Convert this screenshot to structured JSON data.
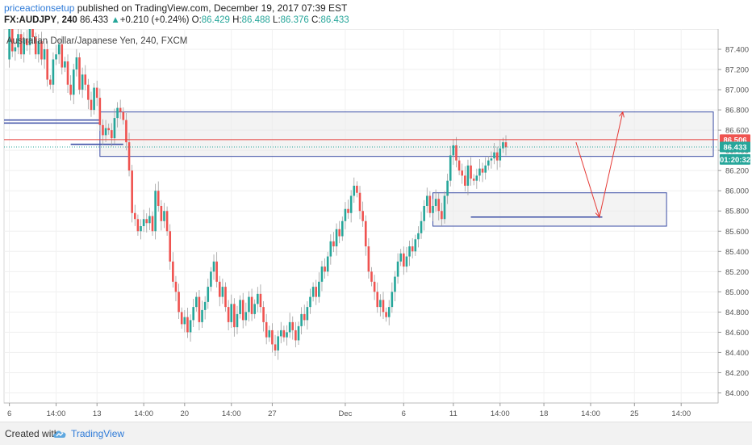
{
  "header": {
    "author": "priceactionsetup",
    "published_text": " published on TradingView.com, December 19, 2017 07:39 EST",
    "symbol": "FX:AUDJPY",
    "interval": "240",
    "last": "86.433",
    "change_arrow": "▲",
    "change": "+0.210 (+0.24%)",
    "o_label": "O:",
    "o_value": "86.429",
    "h_label": "H:",
    "h_value": "86.488",
    "l_label": "L:",
    "l_value": "86.376",
    "c_label": "C:",
    "c_value": "86.433"
  },
  "footer": {
    "created_with": "Created with",
    "brand": "TradingView",
    "logo_icon": "tradingview-cloud-icon"
  },
  "colors": {
    "up": "#26a69a",
    "down": "#ef5350",
    "wick": "#9e9e9e",
    "box_border": "#3b4ea5",
    "box_fill": "#e9e9e9",
    "resistance_line": "#e53935",
    "price_tag_red": "#ef5350",
    "price_tag_green": "#26a69a",
    "arrow": "#e53935"
  },
  "chart_data": {
    "type": "candlestick",
    "subtitle": "Australian Dollar/Japanese Yen, 240, FXCM",
    "y_axis": {
      "min": 83.9,
      "max": 87.6,
      "ticks": [
        "84.000",
        "84.200",
        "84.400",
        "84.600",
        "84.800",
        "85.000",
        "85.200",
        "85.400",
        "85.600",
        "85.800",
        "86.000",
        "86.200",
        "86.400",
        "86.600",
        "86.800",
        "87.000",
        "87.200",
        "87.400"
      ]
    },
    "x_axis": {
      "ticks": [
        {
          "label": "6",
          "bar": 1
        },
        {
          "label": "14:00",
          "bar": 17
        },
        {
          "label": "13",
          "bar": 31
        },
        {
          "label": "14:00",
          "bar": 47
        },
        {
          "label": "20",
          "bar": 61
        },
        {
          "label": "14:00",
          "bar": 77
        },
        {
          "label": "27",
          "bar": 91
        },
        {
          "label": "Dec",
          "bar": 116
        },
        {
          "label": "6",
          "bar": 136
        },
        {
          "label": "11",
          "bar": 153
        },
        {
          "label": "14:00",
          "bar": 169
        },
        {
          "label": "18",
          "bar": 184
        },
        {
          "label": "14:00",
          "bar": 200
        },
        {
          "label": "25",
          "bar": 215
        },
        {
          "label": "14:00",
          "bar": 231
        }
      ]
    },
    "price_labels": [
      {
        "value": 86.506,
        "text": "86.506",
        "color": "#ef5350"
      },
      {
        "value": 86.433,
        "text": "86.433",
        "color": "#26a69a"
      },
      {
        "value": 86.31,
        "text": "01:20:32",
        "color": "#26a69a"
      }
    ],
    "resistance_line": 86.506,
    "last_price": 86.433,
    "zones": [
      {
        "name": "resistance-zone",
        "x0": 32,
        "x1": 242,
        "y0": 86.34,
        "y1": 86.78
      },
      {
        "name": "support-zone",
        "x0": 146,
        "x1": 226,
        "y0": 85.65,
        "y1": 85.98
      }
    ],
    "levels": [
      {
        "name": "left-level-1",
        "x0": 0,
        "x1": 32,
        "y": 86.7
      },
      {
        "name": "left-level-2",
        "x0": 0,
        "x1": 32,
        "y": 86.67
      },
      {
        "name": "mid-level",
        "x0": 22,
        "x1": 40,
        "y": 86.46
      },
      {
        "name": "support-level",
        "x0": 159,
        "x1": 204,
        "y": 85.74
      }
    ],
    "projection_path": [
      [
        195,
        86.48
      ],
      [
        203,
        85.74
      ],
      [
        211,
        86.78
      ]
    ],
    "ohlc_points": [
      [
        0,
        87.3
      ],
      [
        1,
        87.6
      ],
      [
        2,
        87.38
      ],
      [
        3,
        87.42
      ],
      [
        4,
        87.55
      ],
      [
        5,
        87.35
      ],
      [
        6,
        87.5
      ],
      [
        7,
        87.44
      ],
      [
        8,
        87.62
      ],
      [
        9,
        87.52
      ],
      [
        10,
        87.35
      ],
      [
        11,
        87.48
      ],
      [
        12,
        87.3
      ],
      [
        13,
        87.4
      ],
      [
        14,
        87.1
      ],
      [
        15,
        87.05
      ],
      [
        16,
        87.3
      ],
      [
        17,
        87.35
      ],
      [
        18,
        87.45
      ],
      [
        19,
        87.22
      ],
      [
        20,
        87.28
      ],
      [
        21,
        87.05
      ],
      [
        22,
        86.95
      ],
      [
        23,
        87.2
      ],
      [
        24,
        87.32
      ],
      [
        25,
        87.0
      ],
      [
        26,
        87.15
      ],
      [
        27,
        87.05
      ],
      [
        28,
        86.9
      ],
      [
        29,
        86.8
      ],
      [
        30,
        87.02
      ],
      [
        31,
        86.92
      ],
      [
        32,
        86.65
      ],
      [
        33,
        86.55
      ],
      [
        34,
        86.62
      ],
      [
        35,
        86.6
      ],
      [
        36,
        86.52
      ],
      [
        37,
        86.72
      ],
      [
        38,
        86.82
      ],
      [
        39,
        86.78
      ],
      [
        40,
        86.7
      ],
      [
        41,
        86.48
      ],
      [
        42,
        86.2
      ],
      [
        43,
        85.78
      ],
      [
        44,
        85.72
      ],
      [
        45,
        85.6
      ],
      [
        46,
        85.65
      ],
      [
        47,
        85.72
      ],
      [
        48,
        85.68
      ],
      [
        49,
        85.75
      ],
      [
        50,
        85.6
      ],
      [
        51,
        86.0
      ],
      [
        52,
        85.85
      ],
      [
        53,
        85.7
      ],
      [
        54,
        85.8
      ],
      [
        55,
        85.6
      ],
      [
        56,
        85.3
      ],
      [
        57,
        85.1
      ],
      [
        58,
        85.0
      ],
      [
        59,
        84.8
      ],
      [
        60,
        84.68
      ],
      [
        61,
        84.75
      ],
      [
        62,
        84.6
      ],
      [
        63,
        84.72
      ],
      [
        64,
        84.85
      ],
      [
        65,
        84.95
      ],
      [
        66,
        84.7
      ],
      [
        67,
        84.82
      ],
      [
        68,
        84.9
      ],
      [
        69,
        85.05
      ],
      [
        70,
        85.2
      ],
      [
        71,
        85.3
      ],
      [
        72,
        85.1
      ],
      [
        73,
        84.95
      ],
      [
        74,
        85.05
      ],
      [
        75,
        84.85
      ],
      [
        76,
        84.7
      ],
      [
        77,
        84.88
      ],
      [
        78,
        84.65
      ],
      [
        79,
        84.78
      ],
      [
        80,
        84.92
      ],
      [
        81,
        84.72
      ],
      [
        82,
        84.8
      ],
      [
        83,
        84.95
      ],
      [
        84,
        84.78
      ],
      [
        85,
        84.88
      ],
      [
        86,
        84.98
      ],
      [
        87,
        84.85
      ],
      [
        88,
        84.7
      ],
      [
        89,
        84.55
      ],
      [
        90,
        84.62
      ],
      [
        91,
        84.48
      ],
      [
        92,
        84.42
      ],
      [
        93,
        84.56
      ],
      [
        94,
        84.62
      ],
      [
        95,
        84.55
      ],
      [
        96,
        84.6
      ],
      [
        97,
        84.7
      ],
      [
        98,
        84.62
      ],
      [
        99,
        84.52
      ],
      [
        100,
        84.66
      ],
      [
        101,
        84.78
      ],
      [
        102,
        84.72
      ],
      [
        103,
        84.85
      ],
      [
        104,
        84.95
      ],
      [
        105,
        85.05
      ],
      [
        106,
        84.95
      ],
      [
        107,
        85.1
      ],
      [
        108,
        85.25
      ],
      [
        109,
        85.2
      ],
      [
        110,
        85.35
      ],
      [
        111,
        85.5
      ],
      [
        112,
        85.45
      ],
      [
        113,
        85.62
      ],
      [
        114,
        85.55
      ],
      [
        115,
        85.7
      ],
      [
        116,
        85.82
      ],
      [
        117,
        85.78
      ],
      [
        118,
        85.95
      ],
      [
        119,
        86.05
      ],
      [
        120,
        85.98
      ],
      [
        121,
        85.8
      ],
      [
        122,
        85.7
      ],
      [
        123,
        85.45
      ],
      [
        124,
        85.2
      ],
      [
        125,
        85.1
      ],
      [
        126,
        85.0
      ],
      [
        127,
        84.85
      ],
      [
        128,
        84.92
      ],
      [
        129,
        84.8
      ],
      [
        130,
        84.75
      ],
      [
        131,
        84.85
      ],
      [
        132,
        85.0
      ],
      [
        133,
        85.15
      ],
      [
        134,
        85.3
      ],
      [
        135,
        85.38
      ],
      [
        136,
        85.25
      ],
      [
        137,
        85.35
      ],
      [
        138,
        85.45
      ],
      [
        139,
        85.4
      ],
      [
        140,
        85.52
      ],
      [
        141,
        85.58
      ],
      [
        142,
        85.7
      ],
      [
        143,
        85.85
      ],
      [
        144,
        85.95
      ],
      [
        145,
        85.78
      ],
      [
        146,
        85.85
      ],
      [
        147,
        85.92
      ],
      [
        148,
        85.8
      ],
      [
        149,
        85.72
      ],
      [
        150,
        85.95
      ],
      [
        151,
        86.1
      ],
      [
        152,
        86.35
      ],
      [
        153,
        86.45
      ],
      [
        154,
        86.3
      ],
      [
        155,
        86.2
      ],
      [
        156,
        86.15
      ],
      [
        157,
        86.05
      ],
      [
        158,
        86.25
      ],
      [
        159,
        86.12
      ],
      [
        160,
        86.1
      ],
      [
        161,
        86.15
      ],
      [
        162,
        86.22
      ],
      [
        163,
        86.18
      ],
      [
        164,
        86.25
      ],
      [
        165,
        86.3
      ],
      [
        166,
        86.32
      ],
      [
        167,
        86.38
      ],
      [
        168,
        86.3
      ],
      [
        169,
        86.42
      ],
      [
        170,
        86.48
      ],
      [
        171,
        86.43
      ]
    ]
  }
}
